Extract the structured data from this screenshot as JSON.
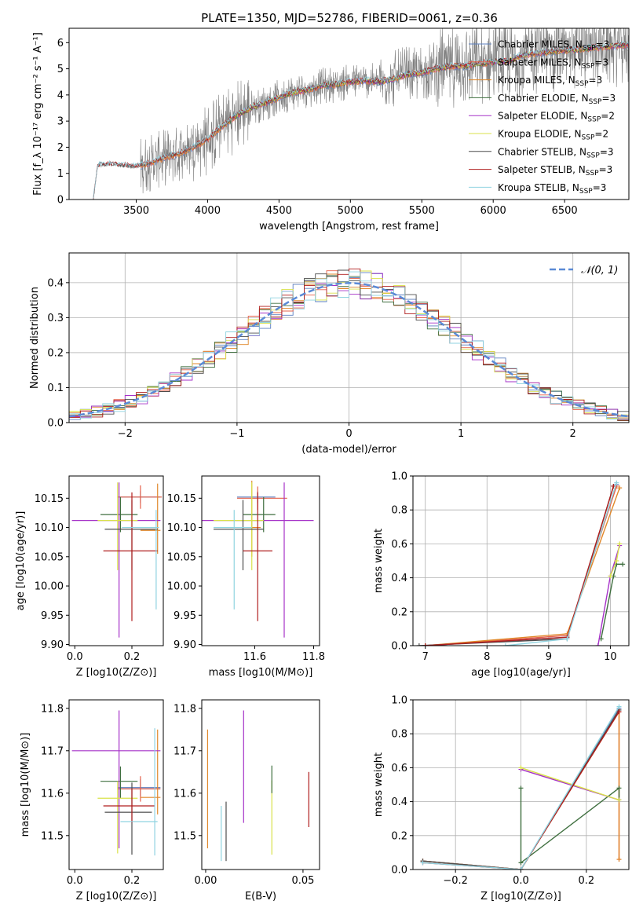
{
  "figure": {
    "title": "PLATE=1350, MJD=52786, FIBERID=0061, z=0.36"
  },
  "colors": {
    "Chabrier MILES": "#5b7fbf",
    "Salpeter MILES": "#e5604a",
    "Kroupa MILES": "#e0882b",
    "Chabrier ELODIE": "#3f6f3f",
    "Salpeter ELODIE": "#a632c8",
    "Kroupa ELODIE": "#d9e24a",
    "Chabrier STELIB": "#4d4d4d",
    "Salpeter STELIB": "#b01e1e",
    "Kroupa STELIB": "#8fd3e0",
    "normal": "#5b8ad6",
    "data": "#808080"
  },
  "chart_data": [
    {
      "id": "spectrum",
      "type": "line",
      "xlabel": "wavelength [Angstrom, rest frame]",
      "ylabel": "Flux [f_λ 10⁻¹⁷ erg cm⁻² s⁻¹ A⁻¹]",
      "xlim": [
        3030,
        6950
      ],
      "ylim": [
        0,
        6.55
      ],
      "xticks": [
        3500,
        4000,
        4500,
        5000,
        5500,
        6000,
        6500
      ],
      "yticks": [
        0,
        1,
        2,
        3,
        4,
        5,
        6
      ],
      "legend_position": "top-right",
      "legend": [
        {
          "label": "Chabrier MILES, N",
          "sub": "SSP",
          "suffix": "=3",
          "key": "Chabrier MILES"
        },
        {
          "label": "Salpeter MILES, N",
          "sub": "SSP",
          "suffix": "=3",
          "key": "Salpeter MILES"
        },
        {
          "label": "Kroupa MILES, N",
          "sub": "SSP",
          "suffix": "=3",
          "key": "Kroupa MILES"
        },
        {
          "label": "Chabrier ELODIE, N",
          "sub": "SSP",
          "suffix": "=3",
          "key": "Chabrier ELODIE"
        },
        {
          "label": "Salpeter ELODIE, N",
          "sub": "SSP",
          "suffix": "=2",
          "key": "Salpeter ELODIE"
        },
        {
          "label": "Kroupa ELODIE, N",
          "sub": "SSP",
          "suffix": "=2",
          "key": "Kroupa ELODIE"
        },
        {
          "label": "Chabrier STELIB, N",
          "sub": "SSP",
          "suffix": "=3",
          "key": "Chabrier STELIB"
        },
        {
          "label": "Salpeter STELIB, N",
          "sub": "SSP",
          "suffix": "=3",
          "key": "Salpeter STELIB"
        },
        {
          "label": "Kroupa STELIB, N",
          "sub": "SSP",
          "suffix": "=3",
          "key": "Kroupa STELIB"
        }
      ],
      "continuum": {
        "x": [
          3200,
          3230,
          3300,
          3400,
          3500,
          3600,
          3700,
          3800,
          3900,
          4000,
          4100,
          4200,
          4300,
          4400,
          4500,
          4600,
          4700,
          4800,
          4900,
          5000,
          5100,
          5200,
          5300,
          5400,
          5500,
          5600,
          5700,
          5800,
          5900,
          6000,
          6100,
          6200,
          6300,
          6400,
          6500,
          6600,
          6700,
          6800,
          6900
        ],
        "y": [
          0,
          1.3,
          1.35,
          1.3,
          1.25,
          1.4,
          1.6,
          1.75,
          2.0,
          2.3,
          2.8,
          3.2,
          3.5,
          3.7,
          3.9,
          4.1,
          4.2,
          4.35,
          4.4,
          4.5,
          4.55,
          4.5,
          4.6,
          4.8,
          4.85,
          5.0,
          5.1,
          5.1,
          5.2,
          5.25,
          5.3,
          5.5,
          5.6,
          5.65,
          5.7,
          5.75,
          5.8,
          5.85,
          5.9
        ]
      },
      "data_noise_ranges": [
        {
          "from": 3500,
          "to": 3530,
          "amp": 0.6
        },
        {
          "from": 3530,
          "to": 3900,
          "amp": 1.1
        },
        {
          "from": 3900,
          "to": 4300,
          "amp": 1.4
        },
        {
          "from": 4300,
          "to": 5200,
          "amp": 0.7
        },
        {
          "from": 5200,
          "to": 5600,
          "amp": 1.1
        },
        {
          "from": 5600,
          "to": 6950,
          "amp": 1.6
        }
      ]
    },
    {
      "id": "residuals",
      "type": "histogram",
      "xlabel": "(data-model)/error",
      "ylabel": "Normed distribution",
      "xlim": [
        -2.5,
        2.5
      ],
      "ylim": [
        0,
        0.485
      ],
      "xticks": [
        -2,
        -1,
        0,
        1,
        2
      ],
      "yticks": [
        0.0,
        0.1,
        0.2,
        0.3,
        0.4
      ],
      "grid": true,
      "legend_position": "top-right",
      "legend_label": "N(0,1)",
      "bin_width": 0.1,
      "bin_start": -2.5
    },
    {
      "id": "age-vs-z",
      "type": "errorbar",
      "xlabel": "Z [log10(Z/Z⊙)]",
      "ylabel": "age  [log10(age/yr)]",
      "xlim": [
        -0.02,
        0.31
      ],
      "ylim": [
        9.898,
        10.188
      ],
      "xticks": [
        0.0,
        0.2
      ],
      "yticks": [
        9.9,
        9.95,
        10.0,
        10.05,
        10.1,
        10.15
      ],
      "points": [
        {
          "key": "Chabrier MILES",
          "x": 0.23,
          "xerr": [
            0.08,
            0.07
          ],
          "y": 10.152,
          "yerr": [
            0.01,
            0.01
          ]
        },
        {
          "key": "Salpeter MILES",
          "x": 0.23,
          "xerr": [
            0.08,
            0.075
          ],
          "y": 10.152,
          "yerr": [
            0.02,
            0.02
          ]
        },
        {
          "key": "Kroupa MILES",
          "x": 0.29,
          "xerr": [
            0.06,
            0.01
          ],
          "y": 10.095,
          "yerr": [
            0.04,
            0.08
          ]
        },
        {
          "key": "Chabrier ELODIE",
          "x": 0.16,
          "xerr": [
            0.07,
            0.06
          ],
          "y": 10.122,
          "yerr": [
            0.03,
            0.03
          ]
        },
        {
          "key": "Salpeter ELODIE",
          "x": 0.155,
          "xerr": [
            0.165,
            0.145
          ],
          "y": 10.112,
          "yerr": [
            0.2,
            0.065
          ]
        },
        {
          "key": "Kroupa ELODIE",
          "x": 0.15,
          "xerr": [
            0.07,
            0.07
          ],
          "y": 10.112,
          "yerr": [
            0.085,
            0.065
          ]
        },
        {
          "key": "Chabrier STELIB",
          "x": 0.2,
          "xerr": [
            0.095,
            0.09
          ],
          "y": 10.097,
          "yerr": [
            0.07,
            0.05
          ]
        },
        {
          "key": "Salpeter STELIB",
          "x": 0.2,
          "xerr": [
            0.1,
            0.09
          ],
          "y": 10.06,
          "yerr": [
            0.12,
            0.1
          ]
        },
        {
          "key": "Kroupa STELIB",
          "x": 0.285,
          "xerr": [
            0.12,
            0.01
          ],
          "y": 10.1,
          "yerr": [
            0.14,
            0.03
          ]
        }
      ]
    },
    {
      "id": "age-vs-mass",
      "type": "errorbar",
      "xlabel": "mass [log10(M/M⊙)]",
      "xlim": [
        11.42,
        11.82
      ],
      "ylim": [
        9.898,
        10.188
      ],
      "xticks": [
        11.6,
        11.8
      ],
      "yticks": [
        9.9,
        9.95,
        10.0,
        10.05,
        10.1,
        10.15
      ],
      "points": [
        {
          "key": "Chabrier MILES",
          "x": 11.61,
          "xerr": [
            0.07,
            0.06
          ],
          "y": 10.152,
          "yerr": [
            0.01,
            0.01
          ]
        },
        {
          "key": "Salpeter MILES",
          "x": 11.61,
          "xerr": [
            0.07,
            0.1
          ],
          "y": 10.15,
          "yerr": [
            0.02,
            0.02
          ]
        },
        {
          "key": "Kroupa MILES",
          "x": 11.59,
          "xerr": [
            0.03,
            0.03
          ],
          "y": 10.1,
          "yerr": [
            0.05,
            0.08
          ]
        },
        {
          "key": "Chabrier ELODIE",
          "x": 11.63,
          "xerr": [
            0.07,
            0.04
          ],
          "y": 10.122,
          "yerr": [
            0.03,
            0.03
          ]
        },
        {
          "key": "Salpeter ELODIE",
          "x": 11.7,
          "xerr": [
            0.28,
            0.1
          ],
          "y": 10.112,
          "yerr": [
            0.2,
            0.065
          ]
        },
        {
          "key": "Kroupa ELODIE",
          "x": 11.59,
          "xerr": [
            0.13,
            0.04
          ],
          "y": 10.112,
          "yerr": [
            0.085,
            0.065
          ]
        },
        {
          "key": "Chabrier STELIB",
          "x": 11.56,
          "xerr": [
            0.1,
            0.07
          ],
          "y": 10.097,
          "yerr": [
            0.07,
            0.05
          ]
        },
        {
          "key": "Salpeter STELIB",
          "x": 11.61,
          "xerr": [
            0.05,
            0.05
          ],
          "y": 10.06,
          "yerr": [
            0.12,
            0.1
          ]
        },
        {
          "key": "Kroupa STELIB",
          "x": 11.53,
          "xerr": [
            0.07,
            0.06
          ],
          "y": 10.1,
          "yerr": [
            0.14,
            0.03
          ]
        }
      ]
    },
    {
      "id": "weight-vs-age",
      "type": "line",
      "xlabel": "age  [log10(age/yr)]",
      "ylabel": "mass weight",
      "xlim": [
        6.8,
        10.3
      ],
      "ylim": [
        0,
        1.0
      ],
      "xticks": [
        7,
        8,
        9,
        10
      ],
      "yticks": [
        0.0,
        0.2,
        0.4,
        0.6,
        0.8,
        1.0
      ],
      "grid": true,
      "series": [
        {
          "key": "Chabrier MILES",
          "x": [
            7.0,
            9.3,
            10.1
          ],
          "y": [
            0.0,
            0.05,
            0.95
          ]
        },
        {
          "key": "Salpeter MILES",
          "x": [
            7.0,
            9.3,
            10.1
          ],
          "y": [
            0.0,
            0.06,
            0.94
          ]
        },
        {
          "key": "Kroupa MILES",
          "x": [
            7.0,
            9.3,
            10.15
          ],
          "y": [
            0.0,
            0.07,
            0.93
          ]
        },
        {
          "key": "Chabrier ELODIE",
          "x": [
            9.85,
            10.05,
            10.1,
            10.2
          ],
          "y": [
            0.04,
            0.41,
            0.48,
            0.48
          ]
        },
        {
          "key": "Salpeter ELODIE",
          "x": [
            9.8,
            10.0,
            10.15
          ],
          "y": [
            0.0,
            0.41,
            0.59
          ]
        },
        {
          "key": "Kroupa ELODIE",
          "x": [
            10.0,
            10.1,
            10.15
          ],
          "y": [
            0.41,
            0.5,
            0.6
          ]
        },
        {
          "key": "Chabrier STELIB",
          "x": [
            6.9,
            9.3,
            10.05
          ],
          "y": [
            0.0,
            0.04,
            0.94
          ]
        },
        {
          "key": "Salpeter STELIB",
          "x": [
            7.0,
            9.3,
            10.05
          ],
          "y": [
            0.0,
            0.05,
            0.94
          ]
        },
        {
          "key": "Kroupa STELIB",
          "x": [
            8.3,
            9.3,
            10.1
          ],
          "y": [
            0.0,
            0.04,
            0.96
          ]
        }
      ]
    },
    {
      "id": "mass-vs-z",
      "type": "errorbar",
      "xlabel": "Z [log10(Z/Z⊙)]",
      "ylabel": "mass [log10(M/M⊙)]",
      "xlim": [
        -0.02,
        0.31
      ],
      "ylim": [
        11.42,
        11.82
      ],
      "xticks": [
        0.0,
        0.2
      ],
      "yticks": [
        11.5,
        11.6,
        11.7,
        11.8
      ],
      "points": [
        {
          "key": "Chabrier MILES",
          "x": 0.23,
          "xerr": [
            0.08,
            0.07
          ],
          "y": 11.613,
          "yerr": [
            0.02,
            0.02
          ]
        },
        {
          "key": "Salpeter MILES",
          "x": 0.23,
          "xerr": [
            0.08,
            0.07
          ],
          "y": 11.61,
          "yerr": [
            0.03,
            0.03
          ]
        },
        {
          "key": "Kroupa MILES",
          "x": 0.29,
          "xerr": [
            0.06,
            0.01
          ],
          "y": 11.59,
          "yerr": [
            0.04,
            0.16
          ]
        },
        {
          "key": "Chabrier ELODIE",
          "x": 0.16,
          "xerr": [
            0.07,
            0.06
          ],
          "y": 11.628,
          "yerr": [
            0.04,
            0.035
          ]
        },
        {
          "key": "Salpeter ELODIE",
          "x": 0.155,
          "xerr": [
            0.165,
            0.145
          ],
          "y": 11.7,
          "yerr": [
            0.23,
            0.095
          ]
        },
        {
          "key": "Kroupa ELODIE",
          "x": 0.15,
          "xerr": [
            0.07,
            0.07
          ],
          "y": 11.588,
          "yerr": [
            0.13,
            0.04
          ]
        },
        {
          "key": "Chabrier STELIB",
          "x": 0.2,
          "xerr": [
            0.095,
            0.07
          ],
          "y": 11.555,
          "yerr": [
            0.1,
            0.07
          ]
        },
        {
          "key": "Salpeter STELIB",
          "x": 0.2,
          "xerr": [
            0.1,
            0.08
          ],
          "y": 11.57,
          "yerr": [
            0.04,
            0.04
          ]
        },
        {
          "key": "Kroupa STELIB",
          "x": 0.28,
          "xerr": [
            0.12,
            0.01
          ],
          "y": 11.533,
          "yerr": [
            0.08,
            0.22
          ]
        }
      ]
    },
    {
      "id": "mass-vs-ebv",
      "type": "errorbar",
      "xlabel": "E(B-V)",
      "xlim": [
        -0.002,
        0.0585
      ],
      "ylim": [
        11.42,
        11.82
      ],
      "xticks": [
        0.0,
        0.05
      ],
      "yticks": [
        11.5,
        11.6,
        11.7,
        11.8
      ],
      "points": [
        {
          "key": "Kroupa MILES",
          "x": 0.001,
          "y": 11.59,
          "yerr": [
            0.12,
            0.16
          ]
        },
        {
          "key": "Kroupa STELIB",
          "x": 0.008,
          "y": 11.5,
          "yerr": [
            0.06,
            0.07
          ]
        },
        {
          "key": "Chabrier STELIB",
          "x": 0.0105,
          "y": 11.5,
          "yerr": [
            0.06,
            0.08
          ]
        },
        {
          "key": "Salpeter ELODIE",
          "x": 0.0195,
          "y": 11.66,
          "yerr": [
            0.13,
            0.135
          ]
        },
        {
          "key": "Kroupa ELODIE",
          "x": 0.034,
          "y": 11.54,
          "yerr": [
            0.085,
            0.09
          ]
        },
        {
          "key": "Chabrier ELODIE",
          "x": 0.034,
          "y": 11.63,
          "yerr": [
            0.03,
            0.035
          ]
        },
        {
          "key": "Salpeter STELIB",
          "x": 0.053,
          "y": 11.585,
          "yerr": [
            0.065,
            0.065
          ]
        }
      ]
    },
    {
      "id": "weight-vs-z",
      "type": "line",
      "xlabel": "Z [log10(Z/Z⊙)]",
      "ylabel": "mass weight",
      "xlim": [
        -0.33,
        0.33
      ],
      "ylim": [
        0,
        1.0
      ],
      "xticks": [
        -0.2,
        0.0,
        0.2
      ],
      "yticks": [
        0.0,
        0.2,
        0.4,
        0.6,
        0.8,
        1.0
      ],
      "grid": true,
      "series": [
        {
          "key": "Chabrier MILES",
          "x": [
            -0.3,
            0.0,
            0.3
          ],
          "y": [
            0.05,
            0.0,
            0.95
          ]
        },
        {
          "key": "Salpeter MILES",
          "x": [
            -0.3,
            0.0,
            0.3,
            0.3
          ],
          "y": [
            0.05,
            0.0,
            0.94,
            0.06
          ]
        },
        {
          "key": "Kroupa MILES",
          "x": [
            -0.3,
            0.0,
            0.3,
            0.3
          ],
          "y": [
            0.05,
            0.0,
            0.93,
            0.06
          ]
        },
        {
          "key": "Chabrier ELODIE",
          "x": [
            0.0,
            0.0,
            0.3,
            0.3
          ],
          "y": [
            0.48,
            0.04,
            0.48,
            0.41
          ]
        },
        {
          "key": "Salpeter ELODIE",
          "x": [
            0.0,
            0.3
          ],
          "y": [
            0.59,
            0.41
          ]
        },
        {
          "key": "Kroupa ELODIE",
          "x": [
            0.0,
            0.3
          ],
          "y": [
            0.6,
            0.41
          ]
        },
        {
          "key": "Chabrier STELIB",
          "x": [
            -0.3,
            0.0,
            0.3
          ],
          "y": [
            0.05,
            0.0,
            0.94
          ]
        },
        {
          "key": "Salpeter STELIB",
          "x": [
            -0.3,
            0.0,
            0.3
          ],
          "y": [
            0.04,
            0.0,
            0.93
          ]
        },
        {
          "key": "Kroupa STELIB",
          "x": [
            -0.3,
            0.0,
            0.3
          ],
          "y": [
            0.04,
            0.0,
            0.96
          ]
        }
      ]
    }
  ]
}
